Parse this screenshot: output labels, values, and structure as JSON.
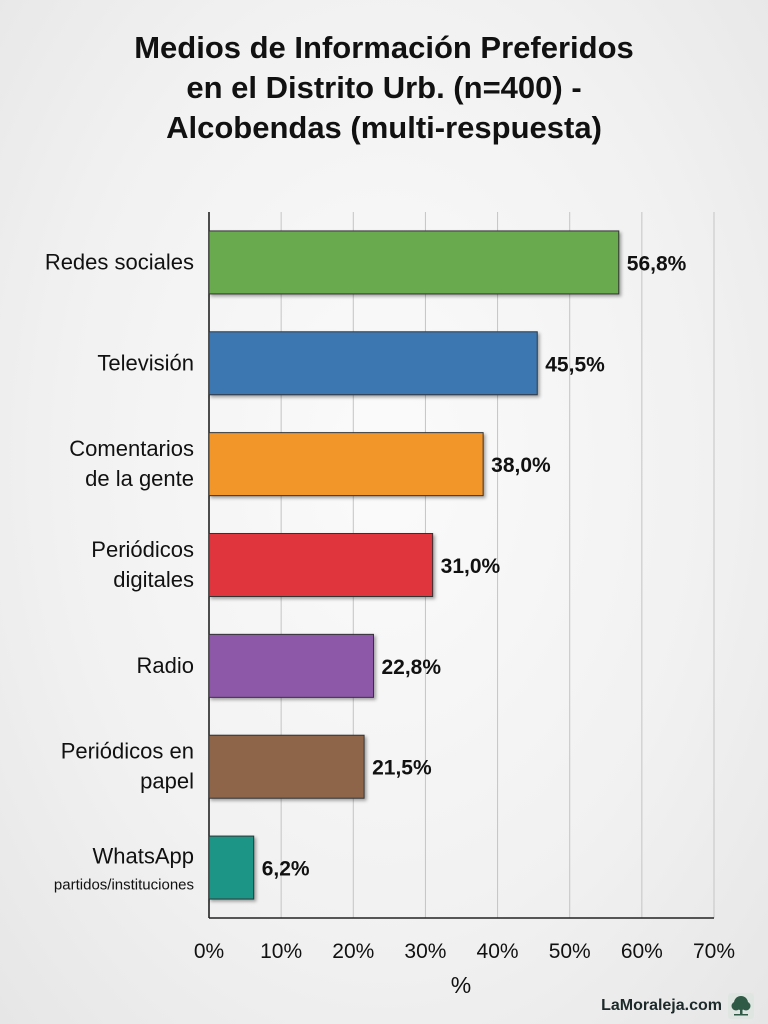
{
  "chart_data": {
    "type": "bar",
    "orientation": "horizontal",
    "title_lines": [
      "Medios de Información Preferidos",
      "en el Distrito Urb. (n=400) -",
      "Alcobendas (multi-respuesta)"
    ],
    "categories": [
      {
        "lines": [
          "Redes sociales"
        ]
      },
      {
        "lines": [
          "Televisión"
        ]
      },
      {
        "lines": [
          "Comentarios",
          "de la gente"
        ]
      },
      {
        "lines": [
          "Periódicos",
          "digitales"
        ]
      },
      {
        "lines": [
          "Radio"
        ]
      },
      {
        "lines": [
          "Periódicos en",
          "papel"
        ]
      },
      {
        "lines": [
          "WhatsApp"
        ],
        "sublabel": "partidos/instituciones"
      }
    ],
    "values": [
      56.8,
      45.5,
      38.0,
      31.0,
      22.8,
      21.5,
      6.2
    ],
    "value_labels": [
      "56,8%",
      "45,5%",
      "38,0%",
      "31,0%",
      "22,8%",
      "21,5%",
      "6,2%"
    ],
    "colors": [
      "#6aaa4f",
      "#3d77b2",
      "#f2962c",
      "#e0353c",
      "#8e58a8",
      "#8f6548",
      "#1a9587"
    ],
    "xlim": [
      0,
      70
    ],
    "xticks": [
      0,
      10,
      20,
      30,
      40,
      50,
      60,
      70
    ],
    "xtick_labels": [
      "0%",
      "10%",
      "20%",
      "30%",
      "40%",
      "50%",
      "60%",
      "70%"
    ],
    "xlabel": "%",
    "grid": true
  },
  "branding": {
    "text": "LaMoraleja.com",
    "logo_icon": "tree-icon"
  }
}
